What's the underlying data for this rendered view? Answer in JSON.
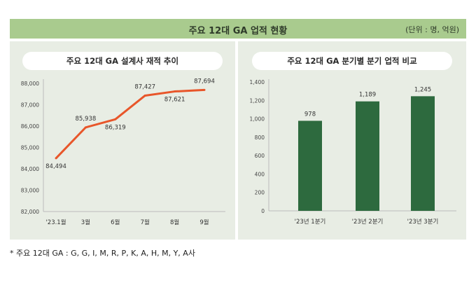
{
  "banner": {
    "title": "주요 12대 GA 업적 현황",
    "unit": "(단위 : 명, 억원)"
  },
  "footnote": "* 주요 12대 GA : G, G, I, M, R, P, K, A, H, M, Y, A사",
  "colors": {
    "banner_bg": "#a9cb8e",
    "panel_bg": "#e8ede4",
    "line": "#e8562a",
    "bar": "#2d6a3e"
  },
  "chart_data": [
    {
      "type": "line",
      "title": "주요 12대 GA 설계사 재적 추이",
      "categories": [
        "'23.1월",
        "3월",
        "6월",
        "7월",
        "8월",
        "9월"
      ],
      "values": [
        84494,
        85938,
        86319,
        87427,
        87621,
        87694
      ],
      "value_labels": [
        "84,494",
        "85,938",
        "86,319",
        "87,427",
        "87,621",
        "87,694"
      ],
      "ylim": [
        82000,
        88000
      ],
      "yticks": [
        "82,000",
        "83,000",
        "84,000",
        "85,000",
        "86,000",
        "87,000",
        "88,000"
      ],
      "grid": false
    },
    {
      "type": "bar",
      "title": "주요 12대 GA 분기별 분기 업적 비교",
      "categories": [
        "'23년 1분기",
        "'23년 2분기",
        "'23년 3분기"
      ],
      "values": [
        978,
        1189,
        1245
      ],
      "value_labels": [
        "978",
        "1,189",
        "1,245"
      ],
      "ylim": [
        0,
        1400
      ],
      "yticks": [
        "0",
        "200",
        "400",
        "600",
        "800",
        "1,000",
        "1,200",
        "1,400"
      ],
      "grid": false
    }
  ]
}
